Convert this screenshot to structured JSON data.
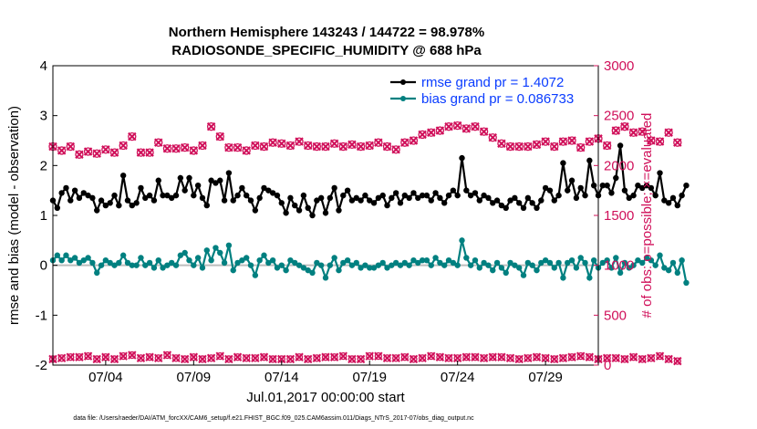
{
  "chart_data": {
    "type": "line",
    "title": [
      "Northern Hemisphere 143243 / 144722 = 98.978%",
      "RADIOSONDE_SPECIFIC_HUMIDITY @ 688 hPa"
    ],
    "xlabel": "Jul.01,2017 00:00:00 start",
    "ylabel_left": "rmse and bias (model - observation)",
    "ylabel_right": "# of obs: o=possible; ×=evaluated",
    "footer": "data file: /Users/raeder/DAI/ATM_forcXX/CAM6_setup/f.e21.FHIST_BGC.f09_025.CAM6assim.011/Diags_NTrS_2017-07/obs_diag_output.nc",
    "x_tick_labels": [
      "07/04",
      "07/09",
      "07/14",
      "07/19",
      "07/24",
      "07/29"
    ],
    "x_tick_days": [
      4,
      9,
      14,
      19,
      24,
      29
    ],
    "xlim": [
      1,
      32
    ],
    "ylim_left": [
      -2,
      4
    ],
    "yticks_left": [
      "-2",
      "-1",
      "0",
      "1",
      "2",
      "3",
      "4"
    ],
    "ylim_right": [
      0,
      3000
    ],
    "yticks_right": [
      "0",
      "500",
      "1000",
      "1500",
      "2000",
      "2500",
      "3000"
    ],
    "grid": false,
    "legend_location": "top-right",
    "zero_line": 0,
    "colors": {
      "rmse": "#000000",
      "bias": "#008080",
      "obs": "#d0105a",
      "zero": "#bdbdbd",
      "legend_text": "#0a3cff",
      "right_axis": "#d0105a"
    },
    "series": [
      {
        "name": "rmse grand pr = 1.4072",
        "axis": "left",
        "x_start_day": 1.0,
        "x_step_day": 0.25,
        "values": [
          1.3,
          1.15,
          1.45,
          1.55,
          1.3,
          1.5,
          1.35,
          1.45,
          1.4,
          1.35,
          1.1,
          1.3,
          1.2,
          1.25,
          1.4,
          1.2,
          1.8,
          1.3,
          1.2,
          1.25,
          1.55,
          1.35,
          1.4,
          1.3,
          1.7,
          1.4,
          1.4,
          1.35,
          1.4,
          1.75,
          1.5,
          1.75,
          1.4,
          1.6,
          1.35,
          1.2,
          1.7,
          1.65,
          1.7,
          1.3,
          1.85,
          1.3,
          1.4,
          1.55,
          1.4,
          1.3,
          1.1,
          1.35,
          1.55,
          1.5,
          1.45,
          1.4,
          1.25,
          1.05,
          1.35,
          1.2,
          1.1,
          1.4,
          1.15,
          1.0,
          1.3,
          1.35,
          1.05,
          1.35,
          1.55,
          1.1,
          1.4,
          1.5,
          1.3,
          1.35,
          1.3,
          1.4,
          1.3,
          1.25,
          1.35,
          1.4,
          1.2,
          1.35,
          1.45,
          1.25,
          1.4,
          1.35,
          1.45,
          1.35,
          1.4,
          1.4,
          1.3,
          1.45,
          1.35,
          1.25,
          1.4,
          1.5,
          1.4,
          2.15,
          1.5,
          1.4,
          1.45,
          1.3,
          1.4,
          1.35,
          1.25,
          1.3,
          1.2,
          1.15,
          1.3,
          1.35,
          1.25,
          1.15,
          1.35,
          1.25,
          1.15,
          1.3,
          1.55,
          1.5,
          1.3,
          1.4,
          2.05,
          1.5,
          1.7,
          1.35,
          1.55,
          1.4,
          2.1,
          1.6,
          1.4,
          1.6,
          1.6,
          1.45,
          1.75,
          2.4,
          1.5,
          1.35,
          1.4,
          1.6,
          1.55,
          1.6,
          1.55,
          1.4,
          1.85,
          1.3,
          1.25,
          1.35,
          1.2,
          1.4,
          1.6
        ]
      },
      {
        "name": "bias grand pr = 0.086733",
        "axis": "left",
        "x_start_day": 1.0,
        "x_step_day": 0.25,
        "values": [
          0.1,
          0.2,
          0.1,
          0.2,
          0.1,
          0.15,
          0.05,
          0.1,
          0.15,
          0.05,
          -0.15,
          0.0,
          0.1,
          0.05,
          0.0,
          0.05,
          0.2,
          0.05,
          0.0,
          0.0,
          0.15,
          0.0,
          0.05,
          -0.05,
          0.1,
          -0.05,
          0.0,
          0.05,
          0.0,
          0.2,
          0.25,
          0.1,
          0.0,
          0.15,
          -0.05,
          0.3,
          0.1,
          0.35,
          0.25,
          0.05,
          0.4,
          -0.1,
          0.05,
          0.1,
          0.15,
          0.0,
          -0.2,
          0.1,
          0.2,
          0.05,
          0.1,
          -0.05,
          0.0,
          -0.1,
          0.1,
          0.05,
          0.0,
          -0.05,
          -0.1,
          -0.15,
          0.05,
          0.0,
          -0.25,
          0.0,
          0.15,
          -0.1,
          0.05,
          0.1,
          0.0,
          0.05,
          -0.05,
          0.0,
          -0.05,
          -0.05,
          0.0,
          0.05,
          -0.05,
          0.0,
          0.05,
          0.0,
          0.05,
          0.0,
          0.1,
          0.05,
          0.1,
          0.1,
          0.0,
          0.15,
          0.05,
          0.0,
          0.1,
          0.05,
          0.0,
          0.5,
          0.15,
          0.0,
          0.1,
          -0.05,
          0.05,
          0.0,
          -0.1,
          0.05,
          -0.05,
          -0.15,
          0.05,
          0.0,
          -0.05,
          -0.2,
          0.05,
          0.0,
          -0.1,
          0.05,
          0.1,
          0.05,
          -0.05,
          0.05,
          -0.25,
          0.05,
          0.1,
          -0.05,
          0.15,
          0.05,
          -0.25,
          0.1,
          -0.05,
          0.05,
          0.1,
          -0.05,
          0.15,
          -0.15,
          0.05,
          -0.05,
          0.0,
          0.1,
          0.05,
          0.15,
          0.1,
          0.0,
          0.2,
          -0.05,
          -0.1,
          0.05,
          -0.15,
          0.1,
          -0.35
        ]
      },
      {
        "name": "possible obs",
        "axis": "right",
        "marker": "o",
        "x_start_day": 1.0,
        "x_step_day": 0.5,
        "values": [
          2190,
          2150,
          2190,
          2110,
          2140,
          2120,
          2160,
          2130,
          2200,
          2290,
          2130,
          2130,
          2230,
          2170,
          2170,
          2180,
          2150,
          2200,
          2390,
          2290,
          2180,
          2180,
          2150,
          2200,
          2190,
          2230,
          2220,
          2200,
          2240,
          2200,
          2190,
          2190,
          2220,
          2190,
          2210,
          2190,
          2200,
          2230,
          2190,
          2160,
          2230,
          2250,
          2310,
          2330,
          2350,
          2390,
          2400,
          2370,
          2390,
          2340,
          2280,
          2220,
          2190,
          2190,
          2190,
          2210,
          2240,
          2190,
          2240,
          2250,
          2180,
          2240,
          2270,
          2200,
          2350,
          2390,
          2330,
          2340,
          2250,
          2240,
          2330,
          2230
        ]
      },
      {
        "name": "evaluated obs",
        "axis": "right",
        "marker": "x",
        "x_start_day": 1.0,
        "x_step_day": 0.5,
        "values": [
          60,
          70,
          80,
          80,
          90,
          60,
          80,
          60,
          90,
          100,
          70,
          80,
          70,
          100,
          70,
          60,
          80,
          60,
          70,
          90,
          60,
          80,
          70,
          70,
          80,
          60,
          60,
          60,
          80,
          60,
          70,
          80,
          80,
          90,
          60,
          60,
          90,
          90,
          70,
          70,
          80,
          60,
          70,
          90,
          80,
          70,
          70,
          80,
          80,
          70,
          80,
          80,
          70,
          60,
          70,
          80,
          70,
          60,
          70,
          80,
          90,
          80,
          60,
          70,
          70,
          60,
          80,
          60,
          70,
          90,
          60,
          40
        ]
      }
    ]
  }
}
